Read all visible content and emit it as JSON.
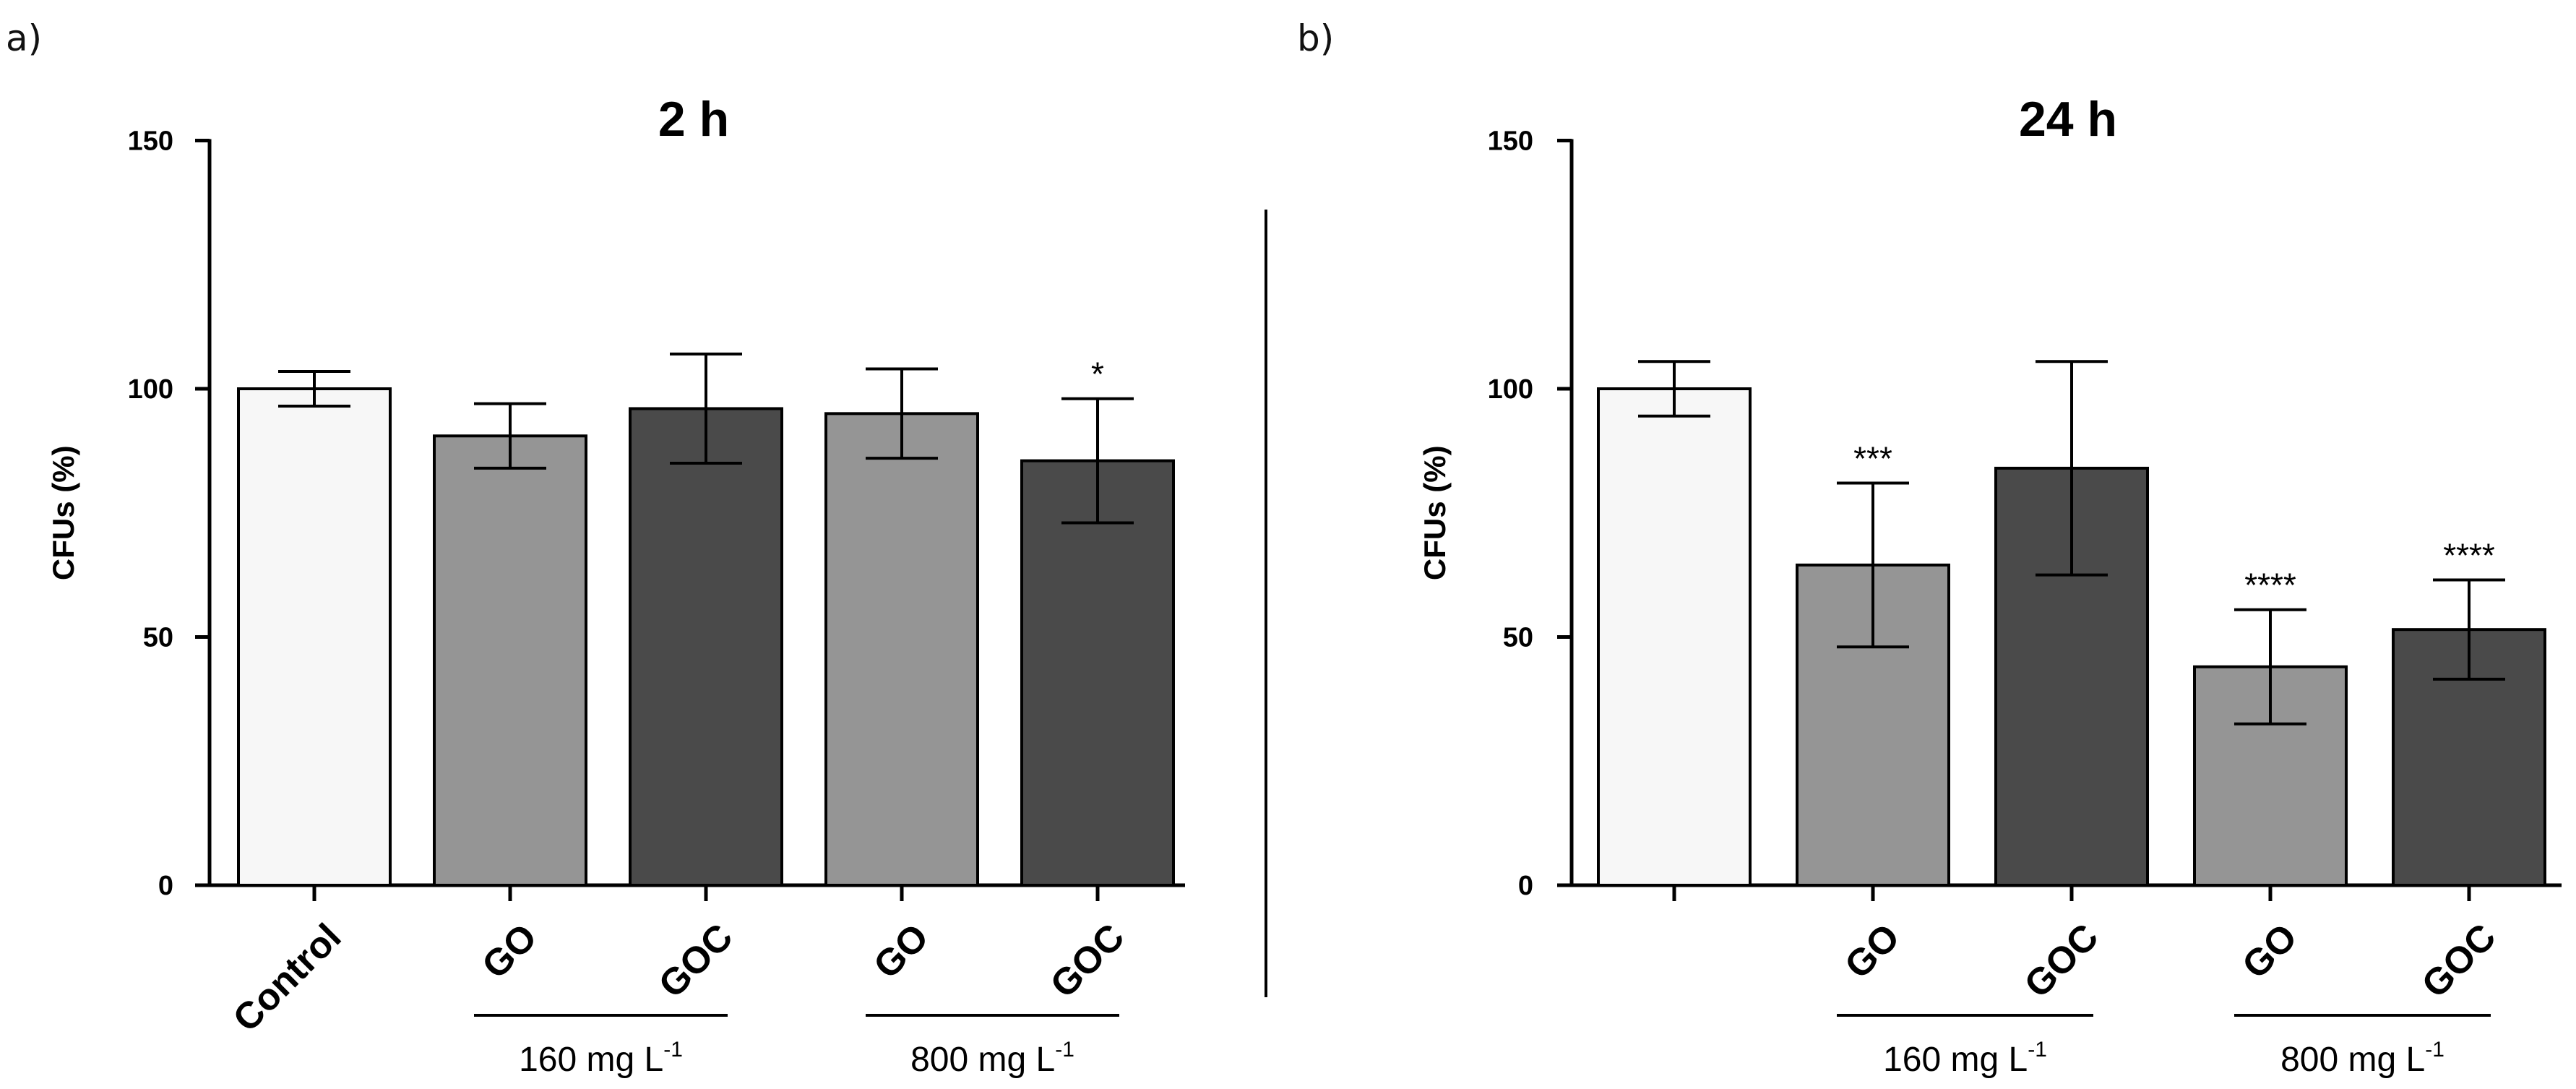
{
  "figure": {
    "divider": "vertical-line",
    "colors": {
      "control": "#f7f7f7",
      "go": "#959595",
      "goc": "#4a4a4a",
      "stroke": "#000000"
    }
  },
  "chart_data": [
    {
      "panel": "a)",
      "type": "bar",
      "title": "2 h",
      "ylabel": "CFUs (%)",
      "xlabel": "",
      "ylim": [
        0,
        150
      ],
      "yticks": [
        0,
        50,
        100,
        150
      ],
      "categories": [
        "Control",
        "GO",
        "GOC",
        "GO",
        "GOC"
      ],
      "series_keys": [
        "control",
        "go",
        "goc",
        "go",
        "goc"
      ],
      "values": [
        100,
        90.5,
        96,
        95,
        85.5
      ],
      "errors": [
        3.5,
        6.5,
        11,
        9,
        12.5
      ],
      "significance": [
        "",
        "",
        "",
        "",
        "*"
      ],
      "groups": [
        {
          "label": "160 mg L",
          "sup": "-1",
          "span": [
            1,
            2
          ]
        },
        {
          "label": "800 mg L",
          "sup": "-1",
          "span": [
            3,
            4
          ]
        }
      ]
    },
    {
      "panel": "b)",
      "type": "bar",
      "title": "24 h",
      "ylabel": "CFUs (%)",
      "xlabel": "",
      "ylim": [
        0,
        150
      ],
      "yticks": [
        0,
        50,
        100,
        150
      ],
      "categories": [
        "",
        "GO",
        "GOC",
        "GO",
        "GOC"
      ],
      "series_keys": [
        "control",
        "go",
        "goc",
        "go",
        "goc"
      ],
      "values": [
        100,
        64.5,
        84,
        44,
        51.5
      ],
      "errors": [
        5.5,
        16.5,
        21.5,
        11.5,
        10
      ],
      "significance": [
        "",
        "***",
        "",
        "****",
        "****"
      ],
      "groups": [
        {
          "label": "160 mg L",
          "sup": "-1",
          "span": [
            1,
            2
          ]
        },
        {
          "label": "800 mg L",
          "sup": "-1",
          "span": [
            3,
            4
          ]
        }
      ]
    }
  ]
}
